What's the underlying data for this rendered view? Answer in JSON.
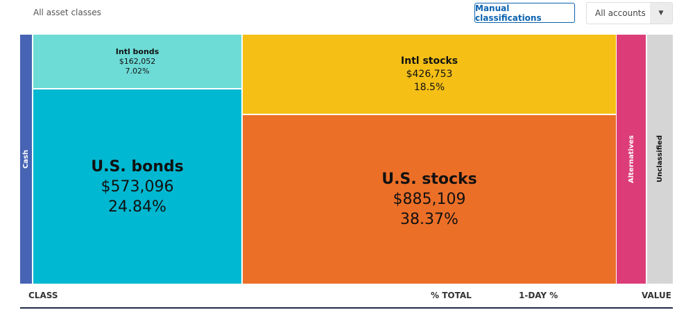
{
  "header": {
    "subtitle": "All asset classes",
    "manual_button": "Manual classifications",
    "accounts_select": "All accounts",
    "dropdown_icon": "caret-down"
  },
  "treemap": [
    {
      "name": "Cash",
      "color": "#4663b4"
    },
    {
      "name": "Intl bonds",
      "value": "$162,052",
      "percent": "7.02%",
      "color": "#6ddbd6"
    },
    {
      "name": "U.S. bonds",
      "value": "$573,096",
      "percent": "24.84%",
      "color": "#00b8d1"
    },
    {
      "name": "Intl stocks",
      "value": "$426,753",
      "percent": "18.5%",
      "color": "#f5bf16"
    },
    {
      "name": "U.S. stocks",
      "value": "$885,109",
      "percent": "38.37%",
      "color": "#ec6f28"
    },
    {
      "name": "Alternatives",
      "color": "#dc3d78"
    },
    {
      "name": "Unclassified",
      "color": "#d5d5d5"
    }
  ],
  "table": {
    "columns": [
      "CLASS",
      "% TOTAL",
      "1-DAY %",
      "VALUE"
    ]
  }
}
